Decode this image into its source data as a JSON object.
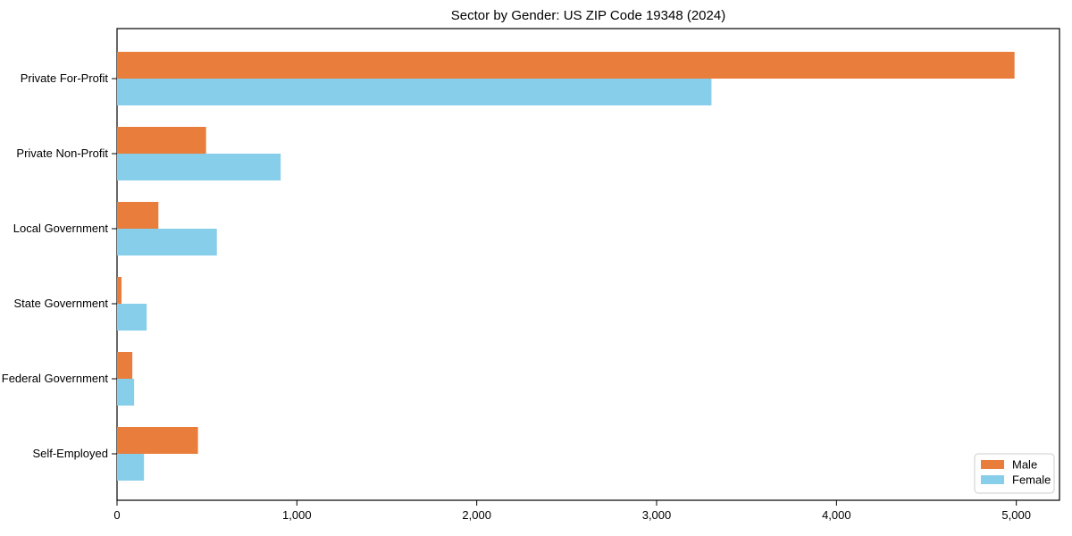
{
  "chart_data": {
    "type": "bar",
    "orientation": "horizontal",
    "title": "Sector by Gender: US ZIP Code 19348 (2024)",
    "categories": [
      "Private For-Profit",
      "Private Non-Profit",
      "Local Government",
      "State Government",
      "Federal Government",
      "Self-Employed"
    ],
    "series": [
      {
        "name": "Male",
        "color": "#e87d3c",
        "values": [
          4990,
          495,
          230,
          25,
          85,
          450
        ]
      },
      {
        "name": "Female",
        "color": "#87ceeb",
        "values": [
          3305,
          910,
          555,
          165,
          95,
          150
        ]
      }
    ],
    "xlabel": "",
    "ylabel": "",
    "xlim": [
      0,
      5240
    ],
    "x_ticks": [
      0,
      1000,
      2000,
      3000,
      4000,
      5000
    ],
    "x_tick_labels": [
      "0",
      "1,000",
      "2,000",
      "3,000",
      "4,000",
      "5,000"
    ],
    "grid": false,
    "legend": {
      "position": "lower right",
      "entries": [
        "Male",
        "Female"
      ]
    },
    "colors": {
      "male": "#e87d3c",
      "female": "#87ceeb",
      "plot_border": "#000000",
      "legend_border": "#cccccc",
      "background": "#ffffff"
    }
  }
}
